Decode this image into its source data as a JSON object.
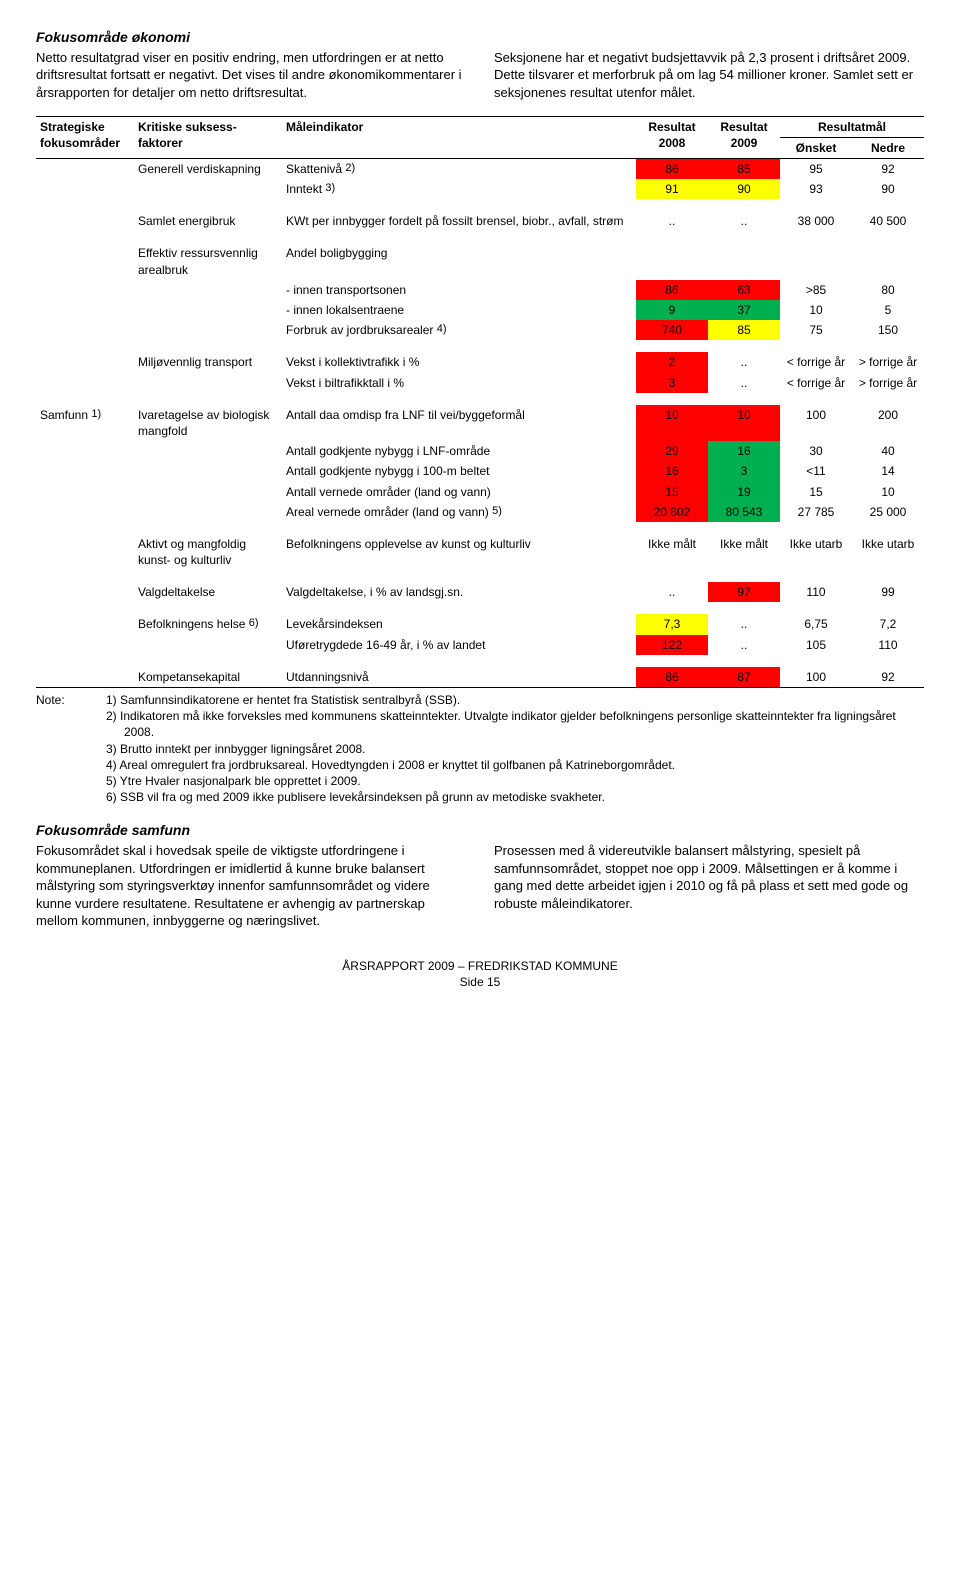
{
  "intro": {
    "section_title": "Fokusområde økonomi",
    "left": "Netto resultatgrad viser en positiv endring, men utfordringen er at netto driftsresultat fortsatt er negativt. Det vises til andre økonomikommentarer i årsrapporten for detaljer om netto driftsresultat.",
    "right": "Seksjonene har et negativt budsjettavvik på 2,3 prosent i driftsåret 2009. Dette tilsvarer et merforbruk på om lag 54 millioner kroner. Samlet sett er seksjonenes resultat utenfor målet."
  },
  "table": {
    "head": {
      "c1": "Strategiske fokusområder",
      "c2": "Kritiske suksess-\nfaktorer",
      "c3": "Måleindikator",
      "c4": "Resultat 2008",
      "c5": "Resultat 2009",
      "c6": "Resultatmål",
      "c6a": "Ønsket",
      "c6b": "Nedre"
    },
    "rowgroup_label": "Samfunn ",
    "rowgroup_sup": "1)",
    "rows": [
      {
        "factor": "Generell verdiskapning",
        "ind": "Skattenivå ",
        "sup": "2)",
        "r08": "86",
        "c08": "red",
        "r09": "85",
        "c09": "red",
        "ons": "95",
        "ned": "92"
      },
      {
        "factor": "",
        "ind": "Inntekt ",
        "sup": "3)",
        "r08": "91",
        "c08": "yellow",
        "r09": "90",
        "c09": "yellow",
        "ons": "93",
        "ned": "90"
      },
      {
        "factor": "Samlet energibruk",
        "ind": "KWt per innbygger fordelt på fossilt brensel, biobr., avfall, strøm",
        "r08": "..",
        "r09": "..",
        "ons": "38 000",
        "ned": "40 500"
      },
      {
        "factor": "Effektiv ressursvennlig arealbruk",
        "ind": "Andel boligbygging",
        "r08": "",
        "r09": "",
        "ons": "",
        "ned": ""
      },
      {
        "factor": "",
        "ind": "- innen transportsonen",
        "r08": "86",
        "c08": "red",
        "r09": "63",
        "c09": "red",
        "ons": ">85",
        "ned": "80"
      },
      {
        "factor": "",
        "ind": "- innen lokalsentraene",
        "r08": "9",
        "c08": "green",
        "r09": "37",
        "c09": "green",
        "ons": "10",
        "ned": "5"
      },
      {
        "factor": "",
        "ind": "Forbruk av jordbruksarealer ",
        "sup": "4)",
        "r08": "740",
        "c08": "red",
        "r09": "85",
        "c09": "yellow",
        "ons": "75",
        "ned": "150"
      },
      {
        "factor": "Miljøvennlig transport",
        "ind": "Vekst i kollektivtrafikk i %",
        "r08": "2",
        "c08": "red",
        "r09": "..",
        "ons": "< forrige år",
        "ned": "> forrige år"
      },
      {
        "factor": "",
        "ind": "Vekst i biltrafikktall i %",
        "r08": "3",
        "c08": "red",
        "r09": "..",
        "ons": "< forrige år",
        "ned": "> forrige år"
      },
      {
        "factor": "Ivaretagelse av biologisk mangfold",
        "ind": "Antall daa omdisp fra LNF til vei/byggeformål",
        "r08": "10",
        "c08": "red",
        "r09": "10",
        "c09": "red",
        "ons": "100",
        "ned": "200"
      },
      {
        "factor": "",
        "ind": "Antall godkjente nybygg i LNF-område",
        "r08": "29",
        "c08": "red",
        "r09": "16",
        "c09": "green",
        "ons": "30",
        "ned": "40"
      },
      {
        "factor": "",
        "ind": "Antall godkjente nybygg i 100-m beltet",
        "r08": "16",
        "c08": "red",
        "r09": "3",
        "c09": "green",
        "ons": "<11",
        "ned": "14"
      },
      {
        "factor": "",
        "ind": "Antall vernede områder (land og vann)",
        "r08": "15",
        "c08": "red",
        "r09": "19",
        "c09": "green",
        "ons": "15",
        "ned": "10"
      },
      {
        "factor": "",
        "ind": "Areal vernede områder (land og vann) ",
        "sup": "5)",
        "r08": "20 802",
        "c08": "red",
        "r09": "80 543",
        "c09": "green",
        "ons": "27 785",
        "ned": "25 000"
      },
      {
        "factor": "Aktivt og mangfoldig kunst- og kulturliv",
        "ind": "Befolkningens opplevelse av kunst og kulturliv",
        "r08": "Ikke målt",
        "r09": "Ikke målt",
        "ons": "Ikke utarb",
        "ned": "Ikke utarb"
      },
      {
        "factor": "Valgdeltakelse",
        "ind": "Valgdeltakelse, i % av landsgj.sn.",
        "r08": "..",
        "r09": "97",
        "c09": "red",
        "ons": "110",
        "ned": "99"
      },
      {
        "factor": "Befolkningens helse ",
        "fsup": "6)",
        "ind": "Levekårsindeksen",
        "r08": "7,3",
        "c08": "yellow",
        "r09": "..",
        "ons": "6,75",
        "ned": "7,2"
      },
      {
        "factor": "",
        "ind": "Uføretrygdede 16-49 år, i % av landet",
        "r08": "122",
        "c08": "red",
        "r09": "..",
        "ons": "105",
        "ned": "110"
      },
      {
        "factor": "Kompetansekapital",
        "ind": "Utdanningsnivå",
        "r08": "86",
        "c08": "red",
        "r09": "87",
        "c09": "red",
        "ons": "100",
        "ned": "92"
      }
    ]
  },
  "note": {
    "label": "Note:",
    "items": [
      "1) Samfunnsindikatorene er hentet fra Statistisk sentralbyrå (SSB).",
      "2) Indikatoren må ikke forveksles med kommunens skatteinntekter. Utvalgte indikator gjelder befolkningens personlige skatteinntekter fra ligningsåret 2008.",
      "3) Brutto inntekt per innbygger ligningsåret 2008.",
      "4) Areal omregulert fra jordbruksareal. Hovedtyngden i 2008 er knyttet til golfbanen på Katrineborgområdet.",
      "5) Ytre Hvaler nasjonalpark ble opprettet i 2009.",
      "6) SSB vil fra og med 2009 ikke publisere levekårsindeksen på grunn av metodiske svakheter."
    ]
  },
  "outro": {
    "section_title": "Fokusområde samfunn",
    "left": "Fokusområdet skal i hovedsak speile de viktigste utfordringene i kommuneplanen. Utfordringen er imidlertid å kunne bruke balansert målstyring som styringsverktøy innenfor samfunnsområdet og videre kunne vurdere resultatene. Resultatene er avhengig av partnerskap mellom kommunen, innbyggerne og næringslivet.",
    "right": "Prosessen med å videreutvikle balansert målstyring, spesielt på samfunnsområdet, stoppet noe opp i 2009. Målsettingen er å komme i gang med dette arbeidet igjen i 2010 og få på plass et sett med gode og robuste måleindikatorer."
  },
  "footer": {
    "line1": "ÅRSRAPPORT 2009 – FREDRIKSTAD KOMMUNE",
    "line2": "Side 15"
  },
  "colors": {
    "red": "#ff0000",
    "yellow": "#ffff00",
    "green": "#00b050",
    "text": "#000000",
    "background": "#ffffff"
  }
}
